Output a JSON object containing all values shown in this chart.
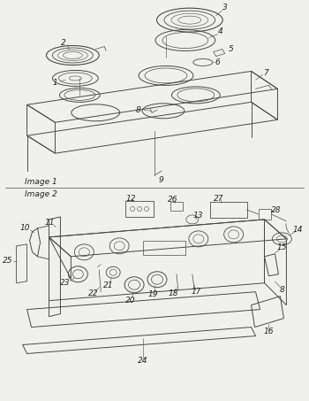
{
  "bg_color": "#f0f0ec",
  "line_color": "#4a4a4a",
  "text_color": "#222222",
  "label_fontsize": 6.5,
  "figsize": [
    3.5,
    4.53
  ],
  "dpi": 100,
  "image1_label": "Image 1",
  "image2_label": "Image 2"
}
